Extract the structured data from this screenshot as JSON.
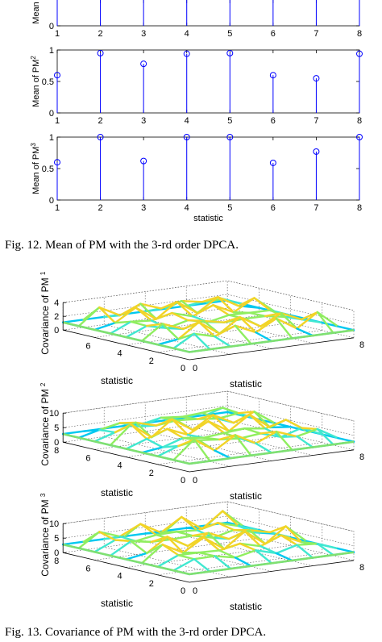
{
  "captions": {
    "fig12": "Fig. 12.    Mean of PM with the 3-rd order DPCA.",
    "fig13": "Fig. 13.    Covariance of PM with the 3-rd order DPCA."
  },
  "chart_data": [
    {
      "type": "stem",
      "ylabel": "Mean",
      "xlabel": "",
      "x": [
        1,
        2,
        3,
        4,
        5,
        6,
        7,
        8
      ],
      "values": [
        1,
        1,
        1,
        1,
        1,
        1,
        1,
        1
      ],
      "xlim": [
        1,
        8
      ],
      "ylim": [
        0,
        1
      ],
      "xticks": [
        "1",
        "2",
        "3",
        "4",
        "5",
        "6",
        "7",
        "8"
      ],
      "yticks": [
        "0"
      ],
      "color": "#0000ff",
      "clipped_top": true
    },
    {
      "type": "stem",
      "ylabel": "Mean of PM",
      "ylabel_sup": "2",
      "xlabel": "",
      "x": [
        1,
        2,
        3,
        4,
        5,
        6,
        7,
        8
      ],
      "values": [
        0.6,
        0.95,
        0.78,
        0.94,
        0.95,
        0.6,
        0.55,
        0.94
      ],
      "xlim": [
        1,
        8
      ],
      "ylim": [
        0,
        1
      ],
      "xticks": [
        "1",
        "2",
        "3",
        "4",
        "5",
        "6",
        "7",
        "8"
      ],
      "yticks": [
        "0",
        "0.5",
        "1"
      ],
      "color": "#0000ff"
    },
    {
      "type": "stem",
      "ylabel": "Mean of PM",
      "ylabel_sup": "3",
      "xlabel": "statistic",
      "x": [
        1,
        2,
        3,
        4,
        5,
        6,
        7,
        8
      ],
      "values": [
        0.6,
        1.0,
        0.62,
        1.0,
        1.0,
        0.59,
        0.77,
        1.0
      ],
      "xlim": [
        1,
        8
      ],
      "ylim": [
        0,
        1
      ],
      "xticks": [
        "1",
        "2",
        "3",
        "4",
        "5",
        "6",
        "7",
        "8"
      ],
      "yticks": [
        "0",
        "0.5",
        "1"
      ],
      "color": "#0000ff"
    },
    {
      "type": "mesh3d",
      "zlabel": "Covariance of PM",
      "zlabel_sup": "1",
      "xlabel": "statistic",
      "ylabel": "statistic",
      "zlim": [
        0,
        4
      ],
      "zticks": [
        "0",
        "2",
        "4"
      ],
      "yticks": [
        "0",
        "2",
        "4",
        "6"
      ],
      "xticks": [
        "0",
        "8"
      ],
      "grid": true
    },
    {
      "type": "mesh3d",
      "zlabel": "Covariance of PM",
      "zlabel_sup": "2",
      "xlabel": "statistic",
      "ylabel": "statistic",
      "zlim": [
        0,
        10
      ],
      "zticks": [
        "0",
        "5",
        "10"
      ],
      "yticks": [
        "8",
        "6",
        "4",
        "2",
        "0"
      ],
      "xticks": [
        "0",
        "8"
      ],
      "grid": true
    },
    {
      "type": "mesh3d",
      "zlabel": "Covariance of PM",
      "zlabel_sup": "3",
      "xlabel": "statistic",
      "ylabel": "statistic",
      "zlim": [
        0,
        10
      ],
      "zticks": [
        "0",
        "5",
        "10"
      ],
      "yticks": [
        "8",
        "6",
        "4",
        "2",
        "0"
      ],
      "xticks": [
        "0",
        "8"
      ],
      "grid": true
    }
  ]
}
